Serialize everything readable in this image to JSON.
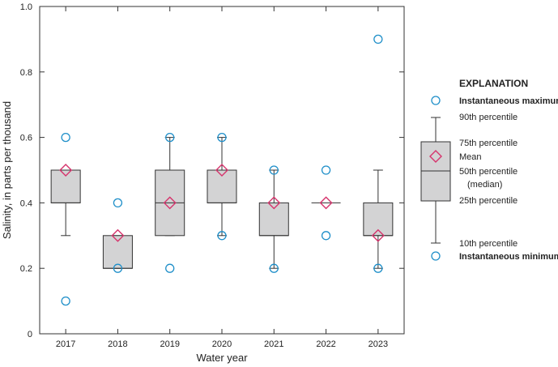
{
  "chart_data": {
    "type": "boxplot",
    "xlabel": "Water year",
    "ylabel": "Salinity, in parts per thousand",
    "ylim": [
      0,
      1.0
    ],
    "yticks": [
      0,
      0.2,
      0.4,
      0.6,
      0.8,
      1.0
    ],
    "ytick_labels": [
      "0",
      "0.2",
      "0.4",
      "0.6",
      "0.8",
      "1.0"
    ],
    "categories": [
      "2017",
      "2018",
      "2019",
      "2020",
      "2021",
      "2022",
      "2023"
    ],
    "series": [
      {
        "year": "2017",
        "p10": 0.3,
        "p25": 0.4,
        "median": 0.4,
        "p75": 0.5,
        "p90": 0.5,
        "mean": 0.5,
        "max": 0.6,
        "min": 0.1,
        "box": true
      },
      {
        "year": "2018",
        "p10": 0.2,
        "p25": 0.2,
        "median": 0.2,
        "p75": 0.3,
        "p90": 0.3,
        "mean": 0.3,
        "max": 0.4,
        "min": 0.2,
        "box": true
      },
      {
        "year": "2019",
        "p10": 0.3,
        "p25": 0.3,
        "median": 0.4,
        "p75": 0.5,
        "p90": 0.6,
        "mean": 0.4,
        "max": 0.6,
        "min": 0.2,
        "box": true
      },
      {
        "year": "2020",
        "p10": 0.3,
        "p25": 0.4,
        "median": 0.4,
        "p75": 0.5,
        "p90": 0.6,
        "mean": 0.5,
        "max": 0.6,
        "min": 0.3,
        "box": true
      },
      {
        "year": "2021",
        "p10": 0.2,
        "p25": 0.3,
        "median": 0.3,
        "p75": 0.4,
        "p90": 0.5,
        "mean": 0.4,
        "max": 0.5,
        "min": 0.2,
        "box": true
      },
      {
        "year": "2022",
        "p10": 0.4,
        "p25": 0.4,
        "median": 0.4,
        "p75": 0.4,
        "p90": 0.4,
        "mean": 0.4,
        "max": 0.5,
        "min": 0.3,
        "box": false
      },
      {
        "year": "2023",
        "p10": 0.2,
        "p25": 0.3,
        "median": 0.3,
        "p75": 0.4,
        "p90": 0.5,
        "mean": 0.3,
        "max": 0.9,
        "min": 0.2,
        "box": true
      }
    ],
    "colors": {
      "box_fill": "#d3d3d4",
      "box_stroke": "#333333",
      "mean_marker": "#d6336c",
      "extreme_marker": "#1f8fc9"
    },
    "legend": {
      "title": "EXPLANATION",
      "placement": "right",
      "max_label": "Instantaneous maximum",
      "p90_label": "90th percentile",
      "p75_label": "75th percentile",
      "mean_label": "Mean",
      "median_label": "50th percentile",
      "median_label2": "(median)",
      "p25_label": "25th percentile",
      "p10_label": "10th percentile",
      "min_label": "Instantaneous minimum"
    }
  }
}
